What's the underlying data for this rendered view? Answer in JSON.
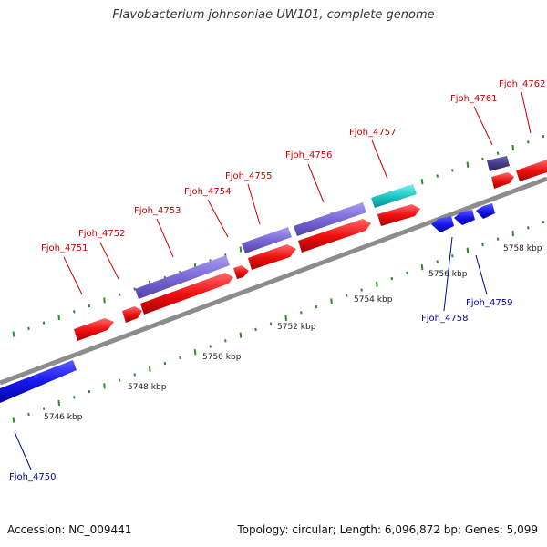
{
  "title": "Flavobacterium johnsoniae UW101, complete genome",
  "footer": {
    "accession": "Accession: NC_009441",
    "topology": "Topology: circular; Length: 6,096,872 bp; Genes: 5,099"
  },
  "colors": {
    "backbone": "#8c8c8c",
    "tick": "#2e8b2e",
    "forward_gene": "#ff1a1a",
    "reverse_gene": "#1a1aee",
    "forward_label": "#cc0000",
    "reverse_label": "#0000aa",
    "cds_purple": "#7b68d8",
    "cds_cyan": "#20c8c8",
    "cds_navy": "#463c8c"
  },
  "scale_labels": [
    "5746 kbp",
    "5748 kbp",
    "5750 kbp",
    "5752 kbp",
    "5754 kbp",
    "5756 kbp",
    "5758 kbp"
  ],
  "genes": [
    {
      "id": "Fjoh_4750",
      "strand": "reverse"
    },
    {
      "id": "Fjoh_4751",
      "strand": "forward"
    },
    {
      "id": "Fjoh_4752",
      "strand": "forward"
    },
    {
      "id": "Fjoh_4753",
      "strand": "forward"
    },
    {
      "id": "Fjoh_4754",
      "strand": "forward"
    },
    {
      "id": "Fjoh_4755",
      "strand": "forward"
    },
    {
      "id": "Fjoh_4756",
      "strand": "forward"
    },
    {
      "id": "Fjoh_4757",
      "strand": "forward"
    },
    {
      "id": "Fjoh_4758",
      "strand": "reverse"
    },
    {
      "id": "Fjoh_4759",
      "strand": "reverse"
    },
    {
      "id": "Fjoh_4761",
      "strand": "forward"
    },
    {
      "id": "Fjoh_4762",
      "strand": "forward"
    }
  ]
}
